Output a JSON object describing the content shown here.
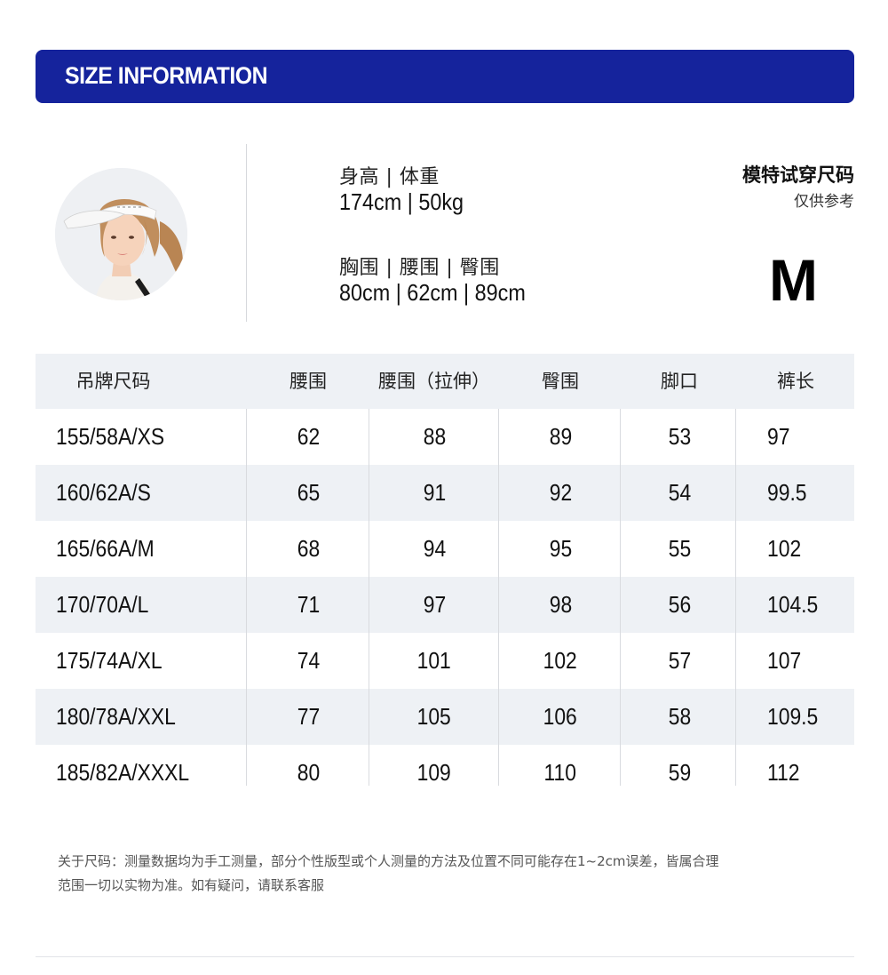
{
  "banner": {
    "title": "SIZE INFORMATION",
    "color": "#15239c"
  },
  "model": {
    "height_weight_label": "身高 | 体重",
    "height_weight_value": "174cm | 50kg",
    "measurements_label": "胸围 | 腰围 | 臀围",
    "measurements_value": "80cm | 62cm | 89cm",
    "fit_title": "模特试穿尺码",
    "fit_subtitle": "仅供参考",
    "fit_size": "M"
  },
  "table": {
    "headers": [
      "吊牌尺码",
      "腰围",
      "腰围（拉伸）",
      "臀围",
      "脚口",
      "裤长"
    ],
    "rows": [
      [
        "155/58A/XS",
        "62",
        "88",
        "89",
        "53",
        "97"
      ],
      [
        "160/62A/S",
        "65",
        "91",
        "92",
        "54",
        "99.5"
      ],
      [
        "165/66A/M",
        "68",
        "94",
        "95",
        "55",
        "102"
      ],
      [
        "170/70A/L",
        "71",
        "97",
        "98",
        "56",
        "104.5"
      ],
      [
        "175/74A/XL",
        "74",
        "101",
        "102",
        "57",
        "107"
      ],
      [
        "180/78A/XXL",
        "77",
        "105",
        "106",
        "58",
        "109.5"
      ],
      [
        "185/82A/XXXL",
        "80",
        "109",
        "110",
        "59",
        "112"
      ]
    ]
  },
  "note": {
    "line1": "关于尺码：测量数据均为手工测量，部分个性版型或个人测量的方法及位置不同可能存在1~2cm误差，皆属合理",
    "line2": "范围一切以实物为准。如有疑问，请联系客服"
  }
}
